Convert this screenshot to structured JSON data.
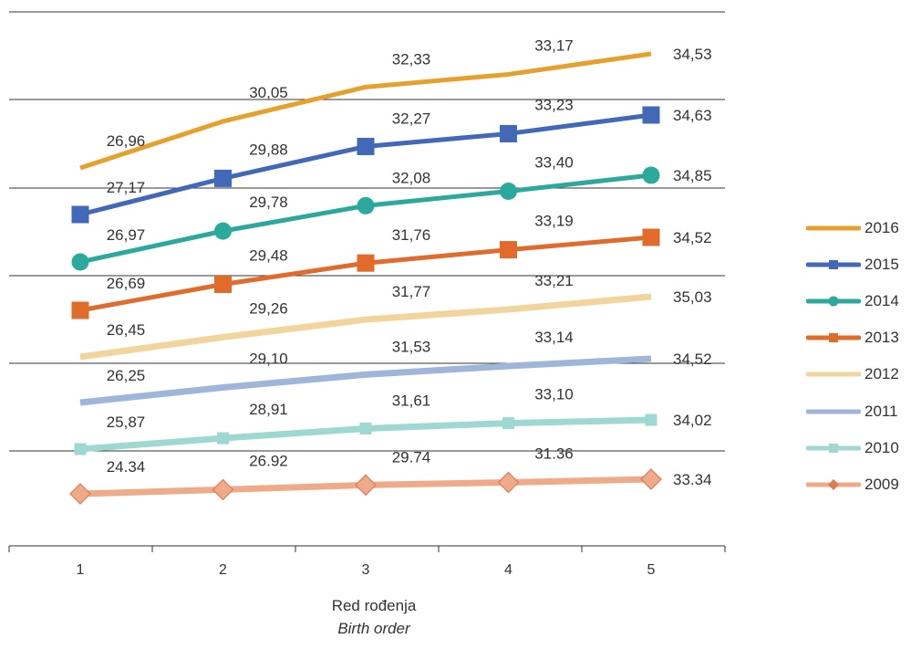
{
  "chart_data": {
    "type": "line",
    "categories": [
      "1",
      "2",
      "3",
      "4",
      "5"
    ],
    "xlabel": "Red rođenja",
    "xlabel_en": "Birth order",
    "series": [
      {
        "name": "2016",
        "color": "#E6A12D",
        "marker": "none",
        "width": 5,
        "values": [
          26.96,
          30.05,
          32.33,
          33.17,
          34.53
        ],
        "labels": [
          "26,96",
          "30,05",
          "32,33",
          "33,17",
          "34,53"
        ]
      },
      {
        "name": "2015",
        "color": "#4169B8",
        "marker": "square",
        "width": 5,
        "values": [
          27.17,
          29.88,
          32.27,
          33.23,
          34.63
        ],
        "labels": [
          "27,17",
          "29,88",
          "32,27",
          "33,23",
          "34,63"
        ]
      },
      {
        "name": "2014",
        "color": "#2BA99D",
        "marker": "circle",
        "width": 5,
        "values": [
          26.97,
          29.78,
          32.08,
          33.4,
          34.85
        ],
        "labels": [
          "26,97",
          "29,78",
          "32,08",
          "33,40",
          "34,85"
        ]
      },
      {
        "name": "2013",
        "color": "#E06B2B",
        "marker": "square",
        "width": 5,
        "values": [
          26.69,
          29.48,
          31.76,
          33.19,
          34.52
        ],
        "labels": [
          "26,69",
          "29,48",
          "31,76",
          "33,19",
          "34,52"
        ]
      },
      {
        "name": "2012",
        "color": "#F2D59C",
        "marker": "none",
        "width": 7,
        "values": [
          26.45,
          29.26,
          31.77,
          33.21,
          35.03
        ],
        "labels": [
          "26,45",
          "29,26",
          "31,77",
          "33,21",
          "35,03"
        ]
      },
      {
        "name": "2011",
        "color": "#9FB5DA",
        "marker": "none",
        "width": 7,
        "values": [
          26.25,
          29.1,
          31.53,
          33.14,
          34.52
        ],
        "labels": [
          "26,25",
          "29,10",
          "31,53",
          "33,14",
          "34,52"
        ]
      },
      {
        "name": "2010",
        "color": "#9ED8D2",
        "marker": "square",
        "width": 7,
        "values": [
          25.87,
          28.91,
          31.61,
          33.1,
          34.02
        ],
        "labels": [
          "25,87",
          "28,91",
          "31,61",
          "33,10",
          "34,02"
        ]
      },
      {
        "name": "2009",
        "color": "#EFAA8A",
        "marker": "diamond",
        "width": 7,
        "values": [
          24.34,
          26.92,
          29.74,
          31.36,
          33.34
        ],
        "labels": [
          "24.34",
          "26.92",
          "29.74",
          "31.36",
          "33.34"
        ]
      }
    ],
    "grid": true,
    "legend": "right"
  }
}
